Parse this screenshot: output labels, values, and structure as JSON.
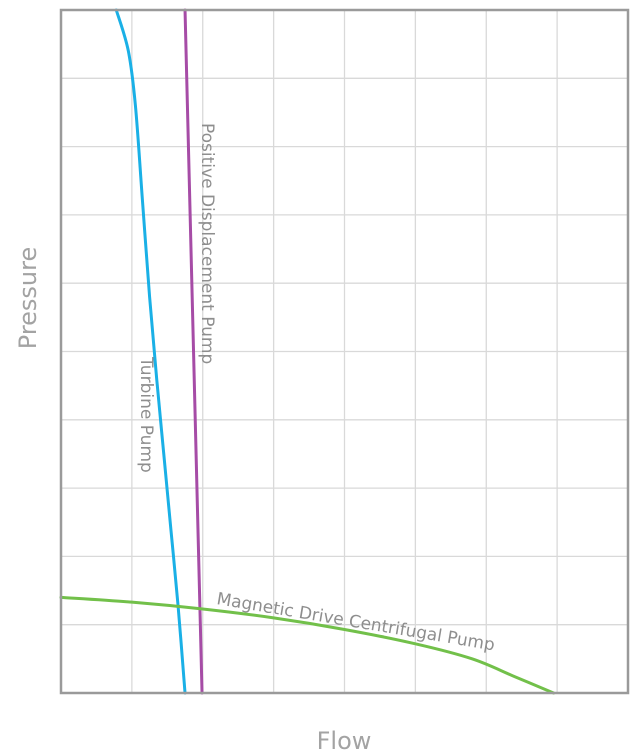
{
  "chart_data": {
    "type": "line",
    "title": "",
    "xlabel": "Flow",
    "ylabel": "Pressure",
    "xlim": [
      0,
      8
    ],
    "ylim": [
      0,
      10
    ],
    "x_tick_labels": [],
    "y_tick_labels": [],
    "grid": true,
    "legend": "none (series labeled directly on curves)",
    "series": [
      {
        "name": "Turbine Pump",
        "color": "#1ab0e6",
        "points": [
          [
            0.78,
            10.0
          ],
          [
            0.95,
            9.4
          ],
          [
            1.05,
            8.6
          ],
          [
            1.15,
            7.2
          ],
          [
            1.25,
            5.8
          ],
          [
            1.35,
            4.6
          ],
          [
            1.45,
            3.5
          ],
          [
            1.55,
            2.4
          ],
          [
            1.65,
            1.3
          ],
          [
            1.75,
            0.0
          ]
        ]
      },
      {
        "name": "Positive Displacement Pump",
        "color": "#a64ca6",
        "points": [
          [
            1.75,
            10.0
          ],
          [
            1.99,
            0.0
          ]
        ]
      },
      {
        "name": "Magnetic Drive Centrifugal Pump",
        "color": "#72c04a",
        "points": [
          [
            0.0,
            1.4
          ],
          [
            1.0,
            1.33
          ],
          [
            2.0,
            1.23
          ],
          [
            3.0,
            1.1
          ],
          [
            4.0,
            0.93
          ],
          [
            5.0,
            0.72
          ],
          [
            5.8,
            0.5
          ],
          [
            6.4,
            0.24
          ],
          [
            6.95,
            0.0
          ]
        ]
      }
    ]
  }
}
